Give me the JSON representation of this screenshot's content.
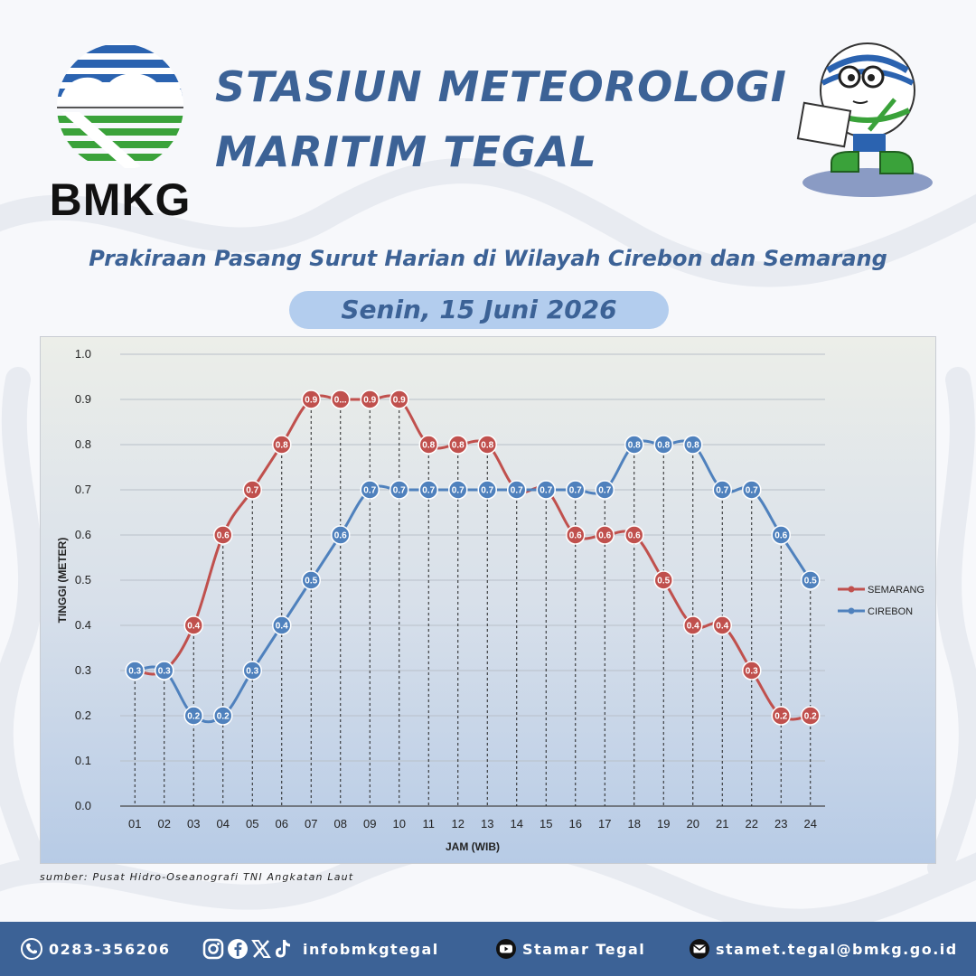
{
  "header": {
    "logo_text": "BMKG",
    "title_line1": "STASIUN METEOROLOGI",
    "title_line2": "MARITIM TEGAL",
    "subtitle": "Prakiraan Pasang Surut Harian di Wilayah Cirebon dan Semarang",
    "date": "Senin, 15 Juni 2026"
  },
  "chart_data": {
    "type": "line",
    "ylabel": "TINGGI (METER)",
    "xlabel": "JAM (WIB)",
    "ylim": [
      0,
      1.0
    ],
    "yticks": [
      "0.0",
      "0.1",
      "0.2",
      "0.3",
      "0.4",
      "0.5",
      "0.6",
      "0.7",
      "0.8",
      "0.9",
      "1.0"
    ],
    "categories": [
      "01",
      "02",
      "03",
      "04",
      "05",
      "06",
      "07",
      "08",
      "09",
      "10",
      "11",
      "12",
      "13",
      "14",
      "15",
      "16",
      "17",
      "18",
      "19",
      "20",
      "21",
      "22",
      "23",
      "24"
    ],
    "grid": true,
    "legend_position": "right",
    "series": [
      {
        "name": "SEMARANG",
        "color": "#c0504d",
        "values": [
          0.3,
          0.3,
          0.4,
          0.6,
          0.7,
          0.8,
          0.9,
          0.9,
          0.9,
          0.9,
          0.8,
          0.8,
          0.8,
          0.7,
          0.7,
          0.6,
          0.6,
          0.6,
          0.5,
          0.4,
          0.4,
          0.3,
          0.2,
          0.2
        ],
        "labels": [
          "0.3",
          "0.3",
          "0.4",
          "0.6",
          "0.7",
          "0.8",
          "0.9",
          "0...",
          "0.9",
          "0.9",
          "0.8",
          "0.8",
          "0.8",
          "0.7",
          "0.7",
          "0.6",
          "0.6",
          "0.6",
          "0.5",
          "0.4",
          "0.4",
          "0.3",
          "0.2",
          "0.2"
        ]
      },
      {
        "name": "CIREBON",
        "color": "#4f81bd",
        "values": [
          0.3,
          0.3,
          0.2,
          0.2,
          0.3,
          0.4,
          0.5,
          0.6,
          0.7,
          0.7,
          0.7,
          0.7,
          0.7,
          0.7,
          0.7,
          0.7,
          0.7,
          0.8,
          0.8,
          0.8,
          0.7,
          0.7,
          0.6,
          0.5
        ],
        "labels": [
          "0.3",
          "0.3",
          "0.2",
          "0.2",
          "0.3",
          "0.4",
          "0.5",
          "0.6",
          "0.7",
          "0.7",
          "0.7",
          "0.7",
          "0.7",
          "0.7",
          "0.7",
          "0.7",
          "0.7",
          "0.8",
          "0.8",
          "0.8",
          "0.7",
          "0.7",
          "0.6",
          "0.5"
        ]
      }
    ]
  },
  "source": "sumber: Pusat Hidro-Oseanografi TNI Angkatan Laut",
  "footer": {
    "phone": "0283-356206",
    "social": "infobmkgtegal",
    "youtube": "Stamar Tegal",
    "email": "stamet.tegal@bmkg.go.id"
  },
  "icons": [
    "phone-icon",
    "instagram-icon",
    "facebook-icon",
    "x-icon",
    "tiktok-icon",
    "youtube-icon",
    "email-icon"
  ]
}
